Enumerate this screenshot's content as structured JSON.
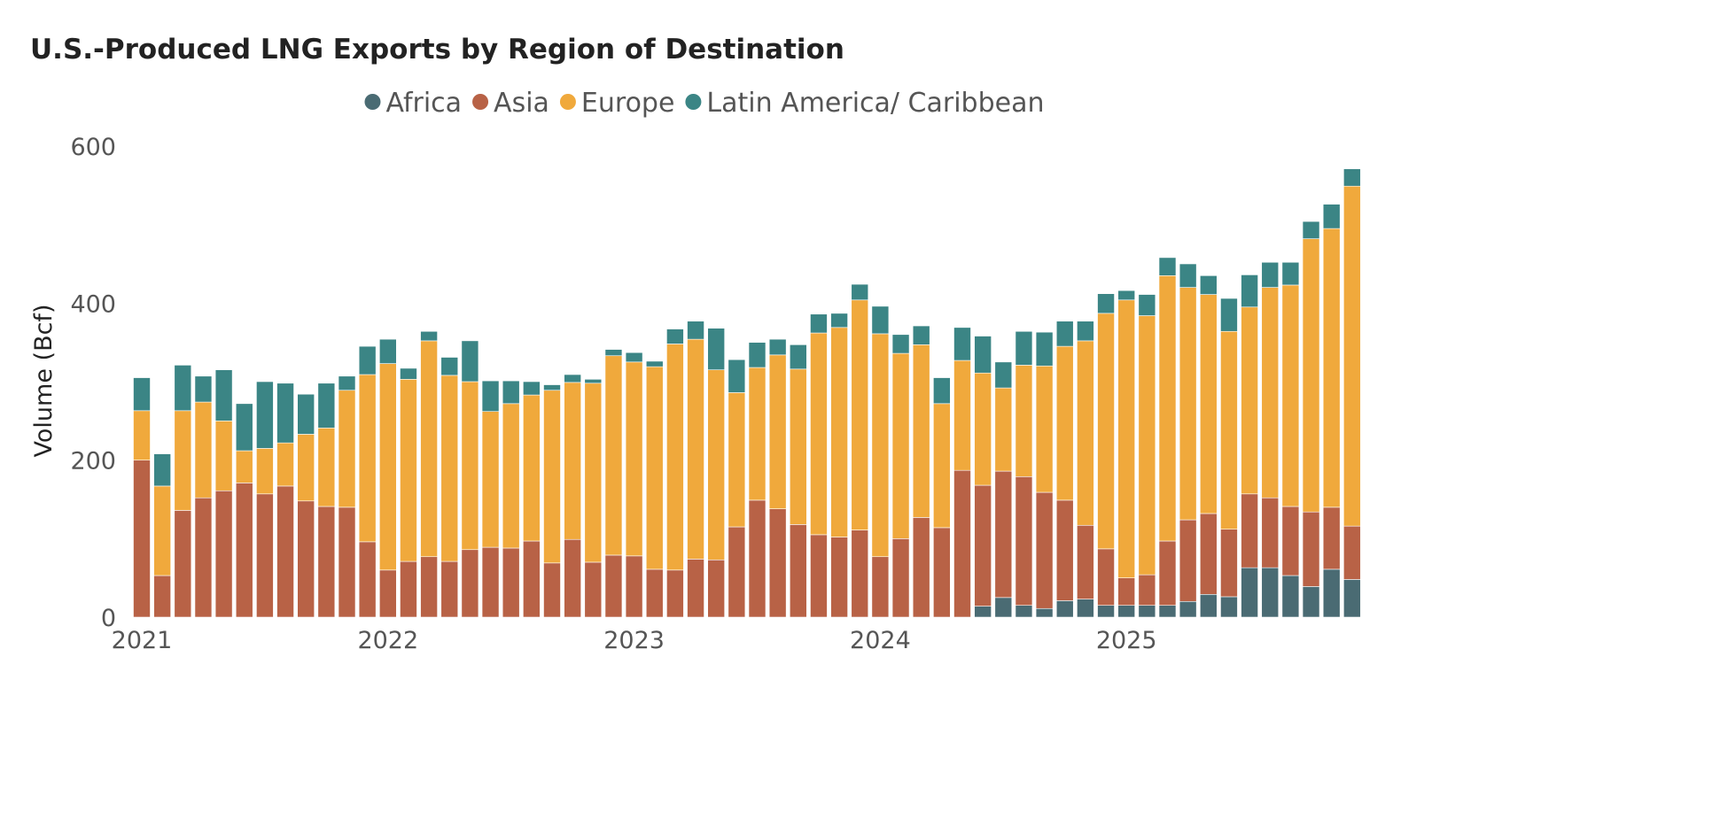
{
  "chart_data": {
    "type": "bar",
    "stacked": true,
    "title": "U.S.-Produced LNG Exports by Region of Destination",
    "xlabel": "",
    "ylabel": "Volume (Bcf)",
    "ylim": [
      0,
      600
    ],
    "yticks": [
      "0",
      "200",
      "400",
      "600"
    ],
    "xtick_labels": [
      "2021",
      "2022",
      "2023",
      "2024",
      "2025"
    ],
    "grid": false,
    "legend_position": "top-center",
    "categories": [
      "2021-01",
      "2021-02",
      "2021-03",
      "2021-04",
      "2021-05",
      "2021-06",
      "2021-07",
      "2021-08",
      "2021-09",
      "2021-10",
      "2021-11",
      "2021-12",
      "2022-01",
      "2022-02",
      "2022-03",
      "2022-04",
      "2022-05",
      "2022-06",
      "2022-07",
      "2022-08",
      "2022-09",
      "2022-10",
      "2022-11",
      "2022-12",
      "2023-01",
      "2023-02",
      "2023-03",
      "2023-04",
      "2023-05",
      "2023-06",
      "2023-07",
      "2023-08",
      "2023-09",
      "2023-10",
      "2023-11",
      "2023-12",
      "2024-01",
      "2024-02",
      "2024-03",
      "2024-04",
      "2024-05",
      "2024-06",
      "2024-07",
      "2024-08",
      "2024-09",
      "2024-10",
      "2024-11",
      "2024-12",
      "2025-01",
      "2025-02",
      "2025-03",
      "2025-04",
      "2025-05",
      "2025-06",
      "2025-07",
      "2025-08",
      "2025-09",
      "2025-10",
      "2025-11",
      "2025-12"
    ],
    "series": [
      {
        "name": "Africa",
        "color": "#4a6b73",
        "values": [
          0,
          0,
          0,
          0,
          0,
          0,
          0,
          0,
          0,
          0,
          0,
          0,
          0,
          0,
          0,
          0,
          0,
          0,
          0,
          0,
          0,
          0,
          0,
          0,
          0,
          0,
          0,
          0,
          0,
          0,
          0,
          0,
          0,
          0,
          0,
          0,
          0,
          0,
          0,
          0,
          0,
          14,
          25,
          15,
          11,
          21,
          23,
          15,
          15,
          15,
          15,
          20,
          29,
          26,
          63,
          63,
          53,
          39,
          61,
          48
        ]
      },
      {
        "name": "Asia",
        "color": "#b86246",
        "values": [
          200,
          53,
          136,
          152,
          161,
          171,
          157,
          167,
          148,
          141,
          140,
          96,
          60,
          71,
          77,
          71,
          86,
          89,
          88,
          97,
          69,
          99,
          70,
          79,
          78,
          61,
          60,
          74,
          73,
          115,
          149,
          138,
          118,
          105,
          102,
          111,
          77,
          100,
          127,
          114,
          187,
          154,
          161,
          164,
          148,
          128,
          94,
          72,
          35,
          39,
          82,
          104,
          103,
          86,
          94,
          89,
          88,
          95,
          79,
          68
        ]
      },
      {
        "name": "Europe",
        "color": "#f0a93c",
        "values": [
          63,
          114,
          127,
          122,
          89,
          41,
          58,
          55,
          85,
          100,
          149,
          213,
          263,
          232,
          275,
          237,
          214,
          173,
          184,
          186,
          220,
          200,
          228,
          254,
          247,
          258,
          288,
          280,
          242,
          171,
          169,
          196,
          198,
          257,
          267,
          293,
          284,
          236,
          220,
          158,
          140,
          143,
          106,
          142,
          161,
          196,
          235,
          300,
          354,
          330,
          338,
          296,
          279,
          252,
          238,
          268,
          282,
          348,
          355,
          433
        ]
      },
      {
        "name": "Latin America/ Caribbean",
        "color": "#3b8585",
        "values": [
          42,
          41,
          58,
          33,
          65,
          60,
          85,
          76,
          51,
          57,
          18,
          36,
          31,
          14,
          12,
          23,
          52,
          39,
          29,
          17,
          7,
          10,
          5,
          8,
          12,
          7,
          19,
          23,
          53,
          42,
          32,
          20,
          31,
          24,
          18,
          20,
          35,
          24,
          24,
          33,
          42,
          47,
          33,
          43,
          43,
          32,
          25,
          25,
          12,
          27,
          23,
          30,
          24,
          42,
          41,
          32,
          29,
          22,
          31,
          22
        ]
      }
    ]
  }
}
